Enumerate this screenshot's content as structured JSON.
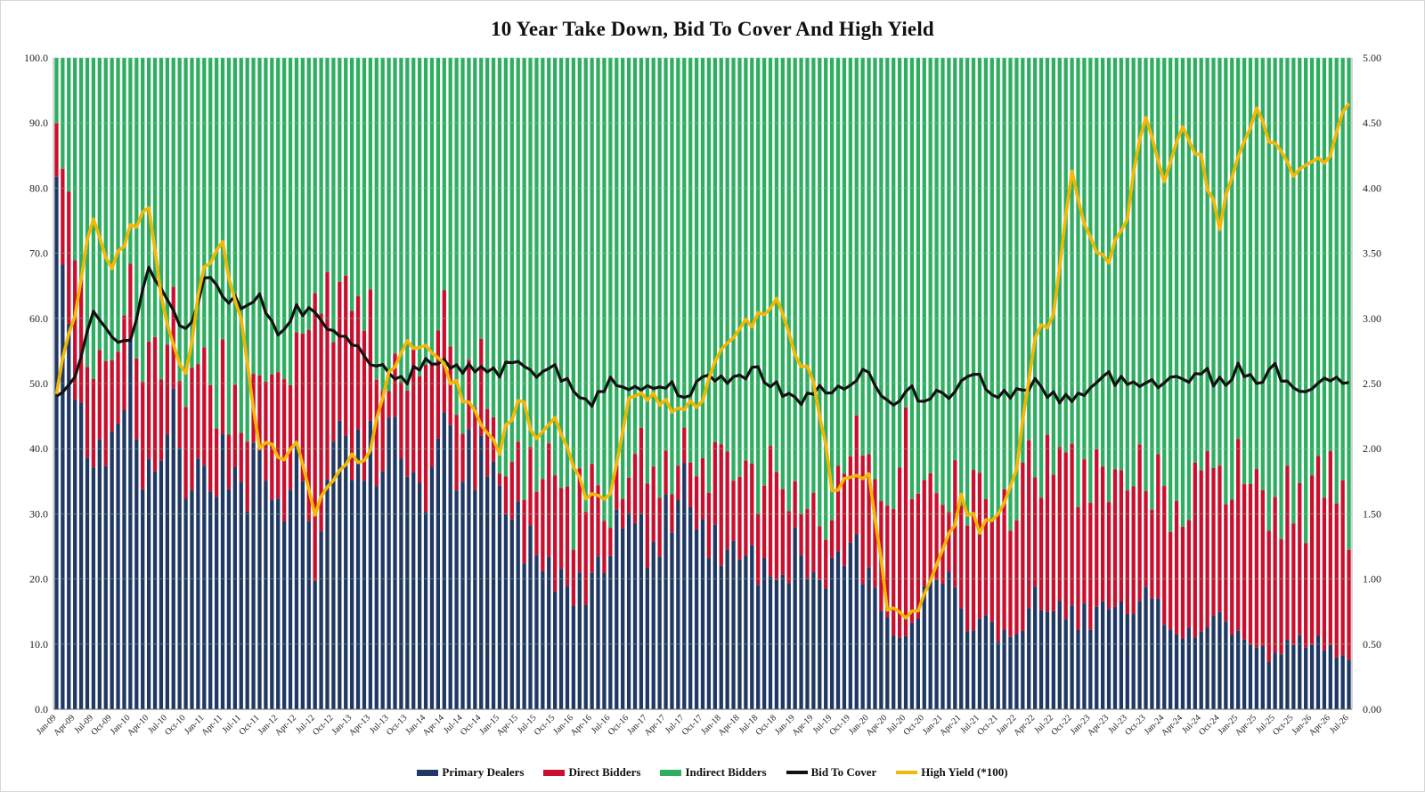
{
  "chart_data": {
    "type": "bar",
    "title": "10 Year Take Down, Bid To Cover And High Yield",
    "stacked": true,
    "left_axis": {
      "ylim": [
        0,
        100
      ],
      "ticks": [
        "0.0",
        "10.0",
        "20.0",
        "30.0",
        "40.0",
        "50.0",
        "60.0",
        "70.0",
        "80.0",
        "90.0",
        "100.0"
      ]
    },
    "right_axis": {
      "ylim": [
        0,
        5
      ],
      "ticks": [
        "0.00",
        "0.50",
        "1.00",
        "1.50",
        "2.00",
        "2.50",
        "3.00",
        "3.50",
        "4.00",
        "4.50",
        "5.00"
      ]
    },
    "x_tick_labels": [
      "Jan-09",
      "Apr-09",
      "Jul-09",
      "Oct-09",
      "Jan-10",
      "Apr-10",
      "Jul-10",
      "Oct-10",
      "Jan-11",
      "Apr-11",
      "Jul-11",
      "Oct-11",
      "Jan-12",
      "Apr-12",
      "Jul-12",
      "Oct-12",
      "Jan-13",
      "Apr-13",
      "Jul-13",
      "Oct-13",
      "Jan-14",
      "Apr-14",
      "Jul-14",
      "Oct-14",
      "Jan-15",
      "Apr-15",
      "Jul-15",
      "Oct-15",
      "Jan-16",
      "Apr-16",
      "Jul-16",
      "Oct-16",
      "Jan-17",
      "Apr-17",
      "Jul-17",
      "Oct-17",
      "Jan-18",
      "Apr-18",
      "Jul-18",
      "Oct-18",
      "Jan-19",
      "Apr-19",
      "Jul-19",
      "Oct-19",
      "Jan-20",
      "Apr-20",
      "Jul-20",
      "Oct-20",
      "Jan-21",
      "Apr-21",
      "Jul-21",
      "Oct-21",
      "Jan-22",
      "Apr-22",
      "Jul-22",
      "Oct-22",
      "Jan-23",
      "Apr-23",
      "Jul-23",
      "Oct-23",
      "Jan-24",
      "Apr-24",
      "Jul-24",
      "Oct-24",
      "Jan-25",
      "Apr-25",
      "Jul-25",
      "Oct-25",
      "Jan-26",
      "Apr-26",
      "Jul-26"
    ],
    "quarterly_points": {
      "primary_dealers": [
        82,
        45,
        43,
        42,
        55,
        33,
        46,
        36,
        38,
        40,
        35,
        38,
        30,
        42,
        20,
        42,
        42,
        38,
        40,
        38,
        35,
        40,
        38,
        36,
        33,
        28,
        24,
        22,
        18,
        20,
        28,
        35,
        22,
        30,
        35,
        25,
        25,
        28,
        22,
        22,
        24,
        18,
        20,
        25,
        22,
        15,
        10,
        18,
        20,
        14,
        14,
        12,
        12,
        16,
        15,
        15,
        14,
        15,
        14,
        16,
        14,
        12,
        12,
        14,
        12,
        9,
        8,
        10,
        10,
        10,
        9
      ],
      "direct_bidders": [
        8,
        28,
        14,
        12,
        12,
        20,
        12,
        15,
        15,
        12,
        10,
        15,
        18,
        18,
        35,
        20,
        28,
        20,
        5,
        18,
        20,
        15,
        8,
        14,
        2,
        10,
        12,
        18,
        12,
        18,
        5,
        6,
        15,
        6,
        6,
        8,
        16,
        10,
        15,
        16,
        8,
        10,
        8,
        15,
        18,
        22,
        28,
        15,
        10,
        18,
        22,
        22,
        20,
        22,
        22,
        20,
        22,
        20,
        22,
        18,
        20,
        20,
        22,
        20,
        24,
        22,
        24,
        22,
        22,
        24,
        20
      ],
      "bid_to_cover": [
        2.45,
        2.55,
        3.0,
        2.9,
        2.8,
        3.4,
        3.1,
        2.9,
        3.3,
        3.2,
        3.1,
        3.2,
        2.9,
        3.1,
        3.0,
        2.85,
        2.8,
        2.7,
        2.6,
        2.55,
        2.65,
        2.7,
        2.6,
        2.65,
        2.6,
        2.7,
        2.55,
        2.65,
        2.4,
        2.35,
        2.55,
        2.5,
        2.45,
        2.5,
        2.45,
        2.5,
        2.55,
        2.55,
        2.6,
        2.5,
        2.35,
        2.45,
        2.45,
        2.45,
        2.6,
        2.35,
        2.45,
        2.4,
        2.4,
        2.5,
        2.55,
        2.4,
        2.45,
        2.5,
        2.4,
        2.4,
        2.45,
        2.55,
        2.5,
        2.55,
        2.5,
        2.55,
        2.6,
        2.5,
        2.6,
        2.55,
        2.6,
        2.5,
        2.45,
        2.5,
        2.55
      ],
      "high_yield_x100": [
        2.45,
        3.05,
        3.8,
        3.35,
        3.7,
        3.85,
        2.9,
        2.55,
        3.4,
        3.55,
        3.0,
        2.05,
        1.95,
        2.0,
        1.5,
        1.75,
        1.9,
        2.0,
        2.6,
        2.8,
        2.85,
        2.6,
        2.4,
        2.2,
        2.0,
        2.4,
        2.1,
        2.3,
        1.8,
        1.6,
        1.65,
        2.4,
        2.4,
        2.35,
        2.3,
        2.4,
        2.75,
        2.95,
        3.0,
        3.2,
        2.7,
        2.55,
        1.7,
        1.75,
        1.85,
        0.8,
        0.7,
        0.85,
        1.2,
        1.6,
        1.4,
        1.45,
        1.9,
        2.9,
        3.0,
        4.1,
        3.6,
        3.45,
        3.8,
        4.6,
        4.05,
        4.5,
        4.2,
        3.7,
        4.3,
        4.6,
        4.3,
        4.1,
        4.15,
        4.3,
        4.65
      ]
    },
    "legend": [
      {
        "name": "Primary Dealers",
        "color": "#1f3864"
      },
      {
        "name": "Direct Bidders",
        "color": "#c8102e"
      },
      {
        "name": "Indirect Bidders",
        "color": "#2fae62"
      },
      {
        "name": "Bid To Cover",
        "color": "#111111"
      },
      {
        "name": "High Yield (*100)",
        "color": "#f2b707"
      }
    ],
    "grid": true,
    "legend_position": "bottom-center"
  }
}
